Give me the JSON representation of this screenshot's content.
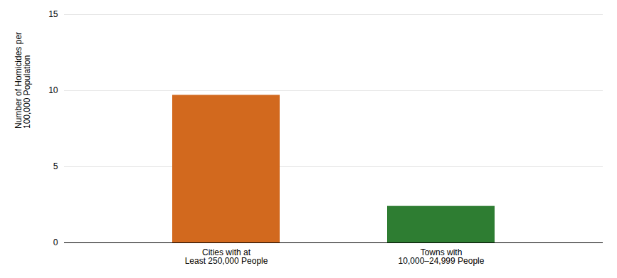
{
  "chart_data": {
    "type": "bar",
    "categories": [
      "Cities with at\nLeast 250,000 People",
      "Towns with\n10,000–24,999 People"
    ],
    "values": [
      9.7,
      2.4
    ],
    "colors": [
      "#D2691E",
      "#2E7D32"
    ],
    "ylabel": "Number of Homicides per\n100,000 Population",
    "ylim": [
      0,
      15
    ],
    "yticks": [
      0,
      5,
      10,
      15
    ],
    "grid": true
  }
}
